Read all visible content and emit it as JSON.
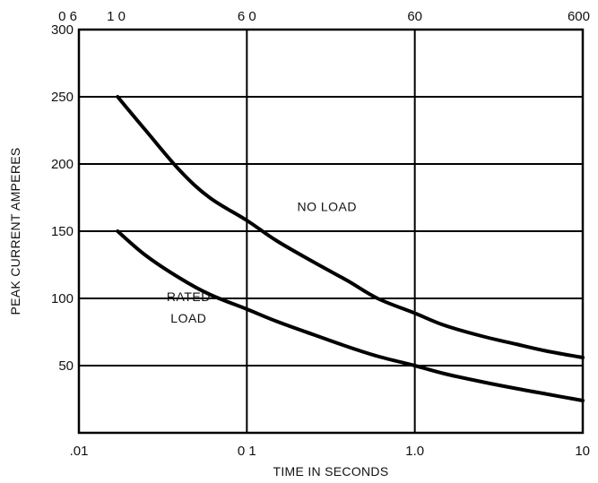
{
  "chart_data": {
    "type": "line",
    "title": "",
    "xlabel": "TIME IN SECONDS",
    "ylabel": "PEAK CURRENT AMPERES",
    "x_scale": "log",
    "xlim": [
      0.01,
      10
    ],
    "ylim": [
      0,
      300
    ],
    "grid": true,
    "x_ticks": [
      {
        "value": 0.01,
        "label": ".01"
      },
      {
        "value": 0.1,
        "label": "0 1"
      },
      {
        "value": 1,
        "label": "1.0"
      },
      {
        "value": 10,
        "label": "10"
      }
    ],
    "x_top_ticks": [
      {
        "value": 0.01,
        "label": "0 6"
      },
      {
        "value": 0.01667,
        "label": "1 0"
      },
      {
        "value": 0.1,
        "label": "6 0"
      },
      {
        "value": 1,
        "label": "60"
      },
      {
        "value": 10,
        "label": "600"
      }
    ],
    "y_ticks": [
      50,
      100,
      150,
      200,
      250,
      300
    ],
    "series": [
      {
        "name": "NO LOAD",
        "x": [
          0.017,
          0.025,
          0.04,
          0.06,
          0.1,
          0.15,
          0.25,
          0.4,
          0.6,
          1.0,
          1.5,
          2.5,
          4,
          6,
          10
        ],
        "y": [
          250,
          225,
          195,
          175,
          158,
          143,
          127,
          113,
          100,
          89,
          80,
          72,
          66,
          61,
          56
        ]
      },
      {
        "name": "RATED LOAD",
        "x": [
          0.017,
          0.025,
          0.04,
          0.06,
          0.1,
          0.15,
          0.25,
          0.4,
          0.6,
          1.0,
          1.5,
          2.5,
          4,
          6,
          10
        ],
        "y": [
          150,
          132,
          115,
          103,
          92,
          83,
          73,
          64,
          57,
          50,
          44,
          38,
          33,
          29,
          24
        ]
      }
    ],
    "annotations": [
      {
        "text": "NO LOAD",
        "x": 0.3,
        "y": 165
      },
      {
        "text": "RATED",
        "x": 0.045,
        "y": 98
      },
      {
        "text": "LOAD",
        "x": 0.045,
        "y": 82
      }
    ]
  }
}
